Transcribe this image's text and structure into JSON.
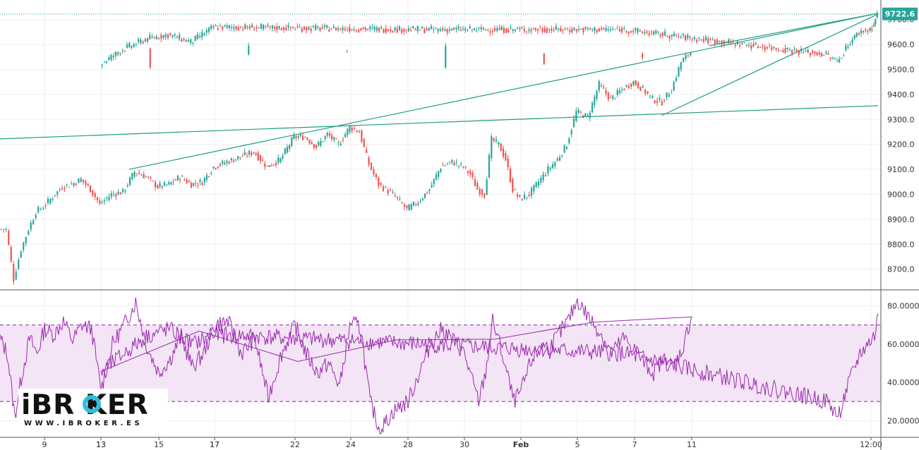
{
  "chart_data": [
    {
      "type": "candlestick",
      "title": "",
      "price_label": "9722.6",
      "y_ticks": [
        "9700.0",
        "9600.0",
        "9500.0",
        "9400.0",
        "9300.0",
        "9200.0",
        "9100.0",
        "9000.0",
        "8900.0",
        "8800.0",
        "8700.0"
      ],
      "y_tick_values": [
        9700,
        9600,
        9500,
        9400,
        9300,
        9200,
        9100,
        9000,
        8900,
        8800,
        8700
      ],
      "ylim": [
        8620,
        9750
      ],
      "x_ticks": [
        "9",
        "13",
        "15",
        "17",
        "22",
        "24",
        "28",
        "30",
        "Feb",
        "5",
        "7",
        "11",
        "13",
        "17",
        "12:00"
      ],
      "current_price": 9722.6,
      "colors": {
        "up": "#26a69a",
        "down": "#ef5350",
        "trendline": "#1e9e84",
        "price_tag": "#26a69a"
      },
      "trendlines": [
        {
          "from": [
            "start",
            9222
          ],
          "to": [
            "end",
            9355
          ]
        },
        {
          "from": [
            "Jan 14",
            9100
          ],
          "to": [
            "end",
            9725
          ]
        },
        {
          "from": [
            "Feb 11",
            9595
          ],
          "to": [
            "end",
            9725
          ]
        },
        {
          "from": [
            "Feb 9",
            9315
          ],
          "to": [
            "end",
            9722
          ]
        }
      ],
      "anchors": [
        [
          "start",
          8860
        ],
        [
          "",
          8860
        ],
        [
          "",
          8660
        ],
        [
          "",
          8780
        ],
        [
          "",
          8860
        ],
        [
          "",
          8930
        ],
        [
          "9",
          8950
        ],
        [
          "",
          8990
        ],
        [
          "",
          9030
        ],
        [
          "",
          9040
        ],
        [
          "",
          9060
        ],
        [
          "",
          9020
        ],
        [
          "13",
          8960
        ],
        [
          "",
          9000
        ],
        [
          "",
          9010
        ],
        [
          "",
          9090
        ],
        [
          "",
          9070
        ],
        [
          "15",
          9030
        ],
        [
          "",
          9040
        ],
        [
          "",
          9070
        ],
        [
          "",
          9040
        ],
        [
          "",
          9050
        ],
        [
          "17",
          9110
        ],
        [
          "",
          9130
        ],
        [
          "",
          9150
        ],
        [
          "",
          9170
        ],
        [
          "",
          9110
        ],
        [
          "",
          9140
        ],
        [
          "22",
          9230
        ],
        [
          "",
          9230
        ],
        [
          "",
          9190
        ],
        [
          "",
          9240
        ],
        [
          "",
          9200
        ],
        [
          "24",
          9270
        ],
        [
          "",
          9250
        ],
        [
          "",
          9120
        ],
        [
          "gap",
          9040
        ],
        [
          "",
          9000
        ],
        [
          "28",
          8940
        ],
        [
          "",
          8970
        ],
        [
          "",
          9020
        ],
        [
          "",
          9110
        ],
        [
          "",
          9130
        ],
        [
          "30",
          9110
        ],
        [
          "",
          9080
        ],
        [
          "",
          9020
        ],
        [
          "",
          9000
        ],
        [
          "",
          9220
        ],
        [
          "",
          9200
        ],
        [
          "",
          9140
        ],
        [
          "",
          9020
        ],
        [
          "Feb",
          8980
        ],
        [
          "",
          9000
        ],
        [
          "",
          9050
        ],
        [
          "",
          9100
        ],
        [
          "",
          9140
        ],
        [
          "",
          9200
        ],
        [
          "5",
          9330
        ],
        [
          "",
          9310
        ],
        [
          "",
          9440
        ],
        [
          "",
          9380
        ],
        [
          "",
          9420
        ],
        [
          "7",
          9450
        ],
        [
          "",
          9420
        ],
        [
          "",
          9380
        ],
        [
          "",
          9370
        ],
        [
          "",
          9420
        ],
        [
          "",
          9530
        ],
        [
          "11",
          9570
        ],
        [
          "",
          9560
        ],
        [
          "",
          9510
        ],
        [
          "",
          9580
        ],
        [
          "",
          9560
        ],
        [
          "",
          9590
        ],
        [
          "13",
          9520
        ],
        [
          "",
          9580
        ],
        [
          "",
          9620
        ],
        [
          "",
          9640
        ],
        [
          "",
          9610
        ],
        [
          "17",
          9670
        ],
        [
          "",
          9660
        ],
        [
          "",
          9660
        ],
        [
          "dip",
          9560
        ],
        [
          "",
          9530
        ],
        [
          "",
          9600
        ],
        [
          "",
          9650
        ],
        [
          "12:00",
          9660
        ],
        [
          "",
          9680
        ],
        [
          "end",
          9722
        ]
      ]
    },
    {
      "type": "line",
      "title": "",
      "y_ticks": [
        "80.0000",
        "60.0000",
        "40.0000",
        "20.0000"
      ],
      "y_tick_values": [
        80,
        60,
        40,
        20
      ],
      "ylim": [
        12,
        88
      ],
      "band": [
        30,
        70
      ],
      "colors": {
        "line": "#9c27b0",
        "band": "#f3e5f5",
        "band_border": "#8e24aa"
      },
      "anchors": [
        [
          "start",
          63
        ],
        [
          "",
          55
        ],
        [
          "",
          22
        ],
        [
          "",
          45
        ],
        [
          "",
          63
        ],
        [
          "",
          55
        ],
        [
          "9",
          68
        ],
        [
          "",
          65
        ],
        [
          "",
          72
        ],
        [
          "",
          62
        ],
        [
          "",
          70
        ],
        [
          "",
          68
        ],
        [
          "13",
          36
        ],
        [
          "",
          60
        ],
        [
          "",
          70
        ],
        [
          "",
          82
        ],
        [
          "",
          58
        ],
        [
          "15",
          45
        ],
        [
          "",
          52
        ],
        [
          "",
          64
        ],
        [
          "",
          48
        ],
        [
          "",
          55
        ],
        [
          "17",
          70
        ],
        [
          "",
          72
        ],
        [
          "",
          55
        ],
        [
          "",
          63
        ],
        [
          "",
          32
        ],
        [
          "",
          55
        ],
        [
          "22",
          70
        ],
        [
          "",
          55
        ],
        [
          "",
          45
        ],
        [
          "",
          50
        ],
        [
          "",
          38
        ],
        [
          "24",
          72
        ],
        [
          "",
          68
        ],
        [
          "",
          30
        ],
        [
          "gap",
          15
        ],
        [
          "",
          25
        ],
        [
          "28",
          30
        ],
        [
          "",
          45
        ],
        [
          "",
          60
        ],
        [
          "",
          68
        ],
        [
          "",
          62
        ],
        [
          "30",
          55
        ],
        [
          "",
          42
        ],
        [
          "",
          30
        ],
        [
          "",
          45
        ],
        [
          "",
          72
        ],
        [
          "",
          60
        ],
        [
          "",
          45
        ],
        [
          "",
          30
        ],
        [
          "Feb",
          35
        ],
        [
          "",
          50
        ],
        [
          "",
          60
        ],
        [
          "",
          58
        ],
        [
          "",
          65
        ],
        [
          "",
          72
        ],
        [
          "5",
          83
        ],
        [
          "",
          74
        ],
        [
          "",
          66
        ],
        [
          "",
          55
        ],
        [
          "",
          63
        ],
        [
          "7",
          58
        ],
        [
          "",
          50
        ],
        [
          "",
          45
        ],
        [
          "",
          52
        ],
        [
          "",
          48
        ],
        [
          "",
          57
        ],
        [
          "11",
          75
        ],
        [
          "",
          72
        ],
        [
          "",
          64
        ],
        [
          "",
          60
        ],
        [
          "",
          52
        ],
        [
          "",
          63
        ],
        [
          "13",
          45
        ],
        [
          "",
          55
        ],
        [
          "",
          64
        ],
        [
          "",
          68
        ],
        [
          "",
          60
        ],
        [
          "17",
          65
        ],
        [
          "",
          60
        ],
        [
          "",
          55
        ],
        [
          "dip",
          30
        ],
        [
          "",
          22
        ],
        [
          "",
          40
        ],
        [
          "",
          55
        ],
        [
          "12:00",
          62
        ],
        [
          "",
          64
        ],
        [
          "end",
          76
        ]
      ]
    }
  ],
  "logo": {
    "brand": "iBR KER",
    "url": "WWW.IBROKER.ES"
  }
}
